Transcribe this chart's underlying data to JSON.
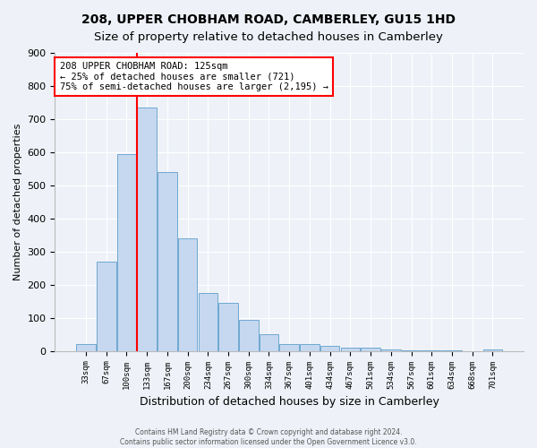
{
  "title": "208, UPPER CHOBHAM ROAD, CAMBERLEY, GU15 1HD",
  "subtitle": "Size of property relative to detached houses in Camberley",
  "xlabel": "Distribution of detached houses by size in Camberley",
  "ylabel": "Number of detached properties",
  "footer_line1": "Contains HM Land Registry data © Crown copyright and database right 2024.",
  "footer_line2": "Contains public sector information licensed under the Open Government Licence v3.0.",
  "bar_labels": [
    "33sqm",
    "67sqm",
    "100sqm",
    "133sqm",
    "167sqm",
    "200sqm",
    "234sqm",
    "267sqm",
    "300sqm",
    "334sqm",
    "367sqm",
    "401sqm",
    "434sqm",
    "467sqm",
    "501sqm",
    "534sqm",
    "567sqm",
    "601sqm",
    "634sqm",
    "668sqm",
    "701sqm"
  ],
  "bar_values": [
    20,
    270,
    595,
    735,
    540,
    340,
    175,
    145,
    95,
    50,
    20,
    20,
    15,
    10,
    10,
    5,
    2,
    2,
    1,
    0,
    5
  ],
  "bar_color": "#c5d8f0",
  "bar_edge_color": "#6fa8d0",
  "vline_pos": 2.5,
  "vline_color": "red",
  "annotation_text": "208 UPPER CHOBHAM ROAD: 125sqm\n← 25% of detached houses are smaller (721)\n75% of semi-detached houses are larger (2,195) →",
  "annotation_box_color": "white",
  "annotation_box_edge_color": "red",
  "ylim": [
    0,
    900
  ],
  "yticks": [
    0,
    100,
    200,
    300,
    400,
    500,
    600,
    700,
    800,
    900
  ],
  "bg_color": "#eef2f8",
  "plot_bg_color": "#eef2f8",
  "title_fontsize": 10,
  "subtitle_fontsize": 9.5,
  "xlabel_fontsize": 9,
  "ylabel_fontsize": 8
}
